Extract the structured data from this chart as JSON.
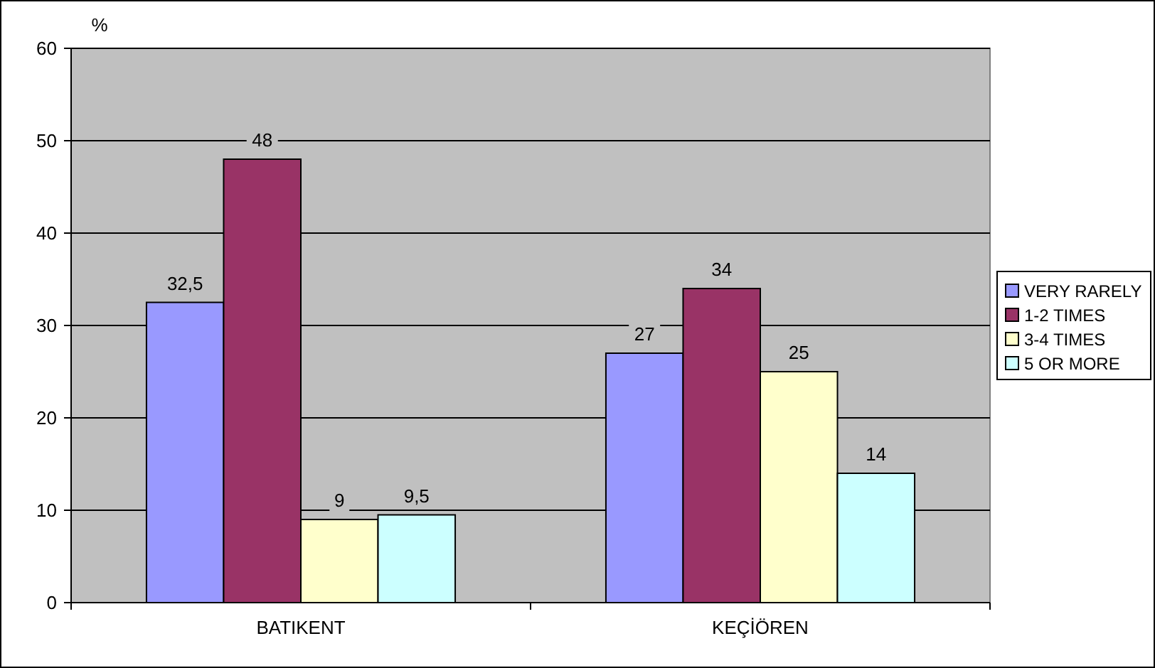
{
  "chart_data": {
    "type": "bar",
    "ylabel": "%",
    "categories": [
      "BATIKENT",
      "KEÇİÖREN"
    ],
    "series": [
      {
        "name": "VERY RARELY",
        "color": "#9999ff",
        "values": [
          32.5,
          27
        ],
        "value_labels": [
          "32,5",
          "27"
        ]
      },
      {
        "name": "1-2 TIMES",
        "color": "#993366",
        "values": [
          48,
          34
        ],
        "value_labels": [
          "48",
          "34"
        ]
      },
      {
        "name": "3-4 TIMES",
        "color": "#ffffcc",
        "values": [
          9,
          25
        ],
        "value_labels": [
          "9",
          "25"
        ]
      },
      {
        "name": "5 OR MORE",
        "color": "#ccffff",
        "values": [
          9.5,
          14
        ],
        "value_labels": [
          "9,5",
          "14"
        ]
      }
    ],
    "ylim": [
      0,
      60
    ],
    "yticks": [
      0,
      10,
      20,
      30,
      40,
      50,
      60
    ],
    "grid": "y",
    "legend": "right"
  }
}
